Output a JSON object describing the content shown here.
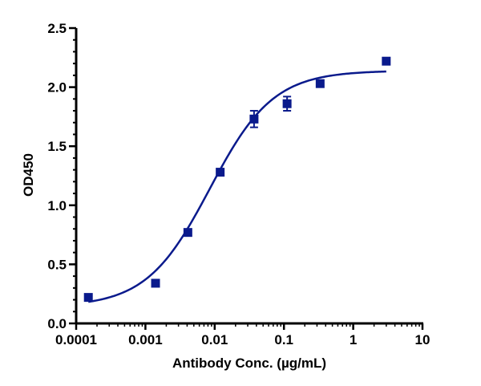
{
  "chart_data": {
    "type": "scatter",
    "title": "",
    "xlabel": "Antibody Conc. (µg/mL)",
    "ylabel": "OD450",
    "xscale": "log",
    "xlim": [
      0.0001,
      10
    ],
    "ylim": [
      0.0,
      2.5
    ],
    "x_ticks": [
      0.0001,
      0.001,
      0.01,
      0.1,
      1,
      10
    ],
    "x_tick_labels": [
      "0.0001",
      "0.001",
      "0.01",
      "0.1",
      "1",
      "10"
    ],
    "y_ticks": [
      0.0,
      0.5,
      1.0,
      1.5,
      2.0,
      2.5
    ],
    "y_tick_labels": [
      "0.0",
      "0.5",
      "1.0",
      "1.5",
      "2.0",
      "2.5"
    ],
    "grid": false,
    "legend": null,
    "series": [
      {
        "name": "OD450",
        "marker": "square",
        "color": "#0a1a8c",
        "points": [
          {
            "x": 0.00015,
            "y": 0.22,
            "err": 0
          },
          {
            "x": 0.0014,
            "y": 0.34,
            "err": 0
          },
          {
            "x": 0.0041,
            "y": 0.77,
            "err": 0
          },
          {
            "x": 0.012,
            "y": 1.28,
            "err": 0
          },
          {
            "x": 0.037,
            "y": 1.73,
            "err": 0.07
          },
          {
            "x": 0.111,
            "y": 1.86,
            "err": 0.06
          },
          {
            "x": 0.333,
            "y": 2.03,
            "err": 0.02
          },
          {
            "x": 3.0,
            "y": 2.22,
            "err": 0
          }
        ]
      }
    ],
    "fit_curve": {
      "type": "4PL sigmoid",
      "color": "#0a1a8c",
      "bottom": 0.14,
      "top": 2.14,
      "ec50": 0.0085,
      "hill": 0.95,
      "x_range": [
        0.00015,
        3.0
      ]
    }
  },
  "colors": {
    "series": "#0a1a8c",
    "axis": "#000000",
    "background": "#ffffff"
  }
}
